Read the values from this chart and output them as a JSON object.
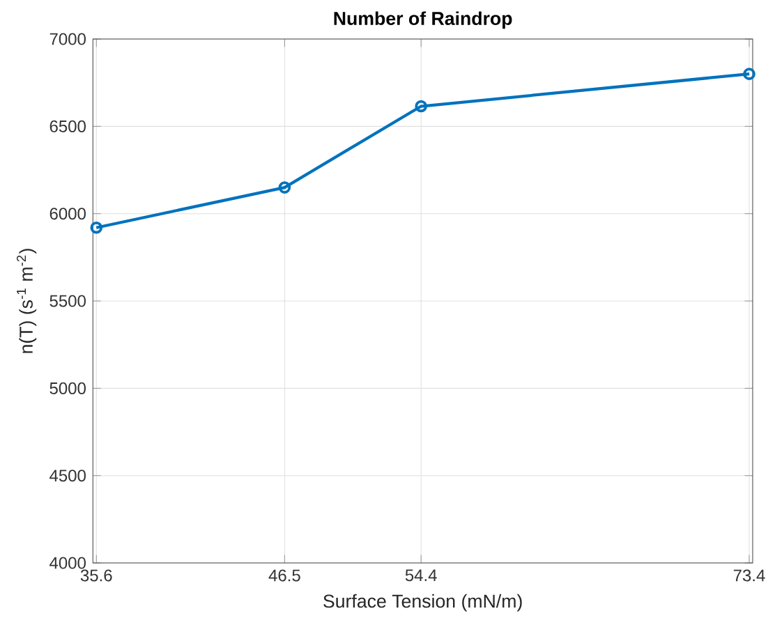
{
  "chart_data": {
    "type": "line",
    "title": "Number of Raindrop",
    "xlabel": "Surface Tension (mN/m)",
    "ylabel": "n(T) (s$^{-1}$ m$^{-2}$)",
    "x": [
      35.6,
      46.5,
      54.4,
      73.4
    ],
    "series": [
      {
        "color": "#0072bd",
        "values": [
          5920,
          6150,
          6615,
          6800
        ]
      }
    ],
    "xlim": [
      35.4,
      73.6
    ],
    "ylim": [
      4000,
      7000
    ],
    "xticks": [
      35.6,
      46.5,
      54.4,
      73.4
    ],
    "yticks": [
      4000,
      4500,
      5000,
      5500,
      6000,
      6500,
      7000
    ],
    "grid": true,
    "marker": "circle",
    "line_style": "solid"
  }
}
